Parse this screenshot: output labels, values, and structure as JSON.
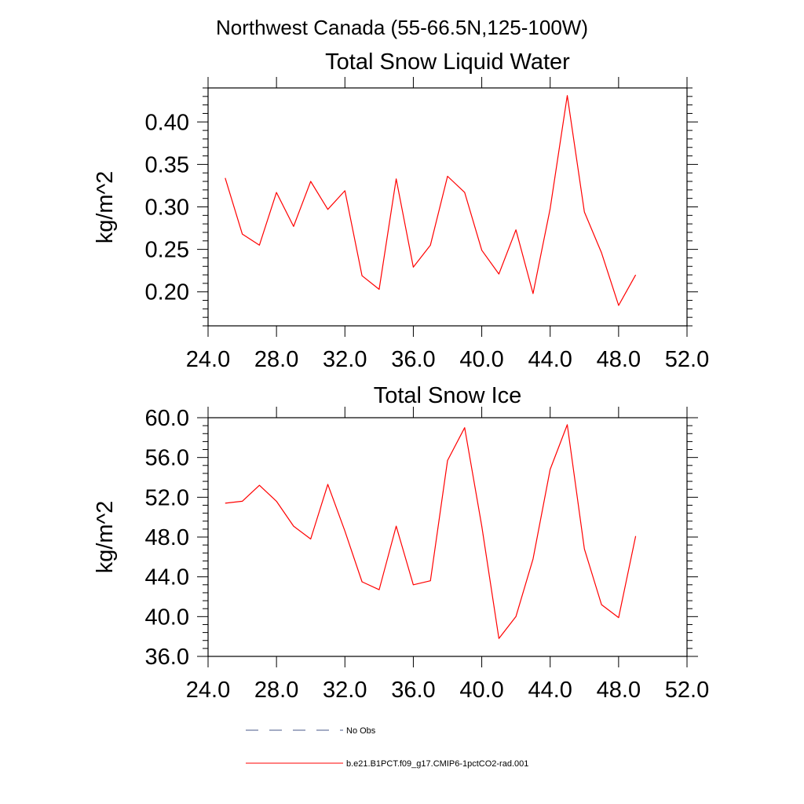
{
  "figure": {
    "main_title": "Northwest Canada (55-66.5N,125-100W)"
  },
  "chart_data": [
    {
      "type": "line",
      "title": "Total Snow Liquid Water",
      "xlabel": "",
      "ylabel": "kg/m^2",
      "xlim": [
        24.0,
        52.0
      ],
      "ylim": [
        0.16,
        0.44
      ],
      "xticks": [
        24.0,
        28.0,
        32.0,
        36.0,
        40.0,
        44.0,
        48.0,
        52.0
      ],
      "xtick_labels": [
        "24.0",
        "28.0",
        "32.0",
        "36.0",
        "40.0",
        "44.0",
        "48.0",
        "52.0"
      ],
      "yticks": [
        0.2,
        0.25,
        0.3,
        0.35,
        0.4
      ],
      "ytick_labels": [
        "0.20",
        "0.25",
        "0.30",
        "0.35",
        "0.40"
      ],
      "grid": false,
      "series": [
        {
          "name": "b.e21.B1PCT.f09_g17.CMIP6-1pctCO2-rad.001",
          "color": "#ff0000",
          "x": [
            25,
            26,
            27,
            28,
            29,
            30,
            31,
            32,
            33,
            34,
            35,
            36,
            37,
            38,
            39,
            40,
            41,
            42,
            43,
            44,
            45,
            46,
            47,
            48,
            49
          ],
          "y": [
            0.334,
            0.268,
            0.255,
            0.317,
            0.277,
            0.33,
            0.297,
            0.319,
            0.219,
            0.203,
            0.333,
            0.229,
            0.255,
            0.336,
            0.317,
            0.249,
            0.221,
            0.273,
            0.198,
            0.298,
            0.431,
            0.294,
            0.246,
            0.184,
            0.22
          ]
        }
      ]
    },
    {
      "type": "line",
      "title": "Total Snow Ice",
      "xlabel": "",
      "ylabel": "kg/m^2",
      "xlim": [
        24.0,
        52.0
      ],
      "ylim": [
        36.0,
        60.0
      ],
      "xticks": [
        24.0,
        28.0,
        32.0,
        36.0,
        40.0,
        44.0,
        48.0,
        52.0
      ],
      "xtick_labels": [
        "24.0",
        "28.0",
        "32.0",
        "36.0",
        "40.0",
        "44.0",
        "48.0",
        "52.0"
      ],
      "yticks": [
        36.0,
        40.0,
        44.0,
        48.0,
        52.0,
        56.0,
        60.0
      ],
      "ytick_labels": [
        "36.0",
        "40.0",
        "44.0",
        "48.0",
        "52.0",
        "56.0",
        "60.0"
      ],
      "grid": false,
      "series": [
        {
          "name": "b.e21.B1PCT.f09_g17.CMIP6-1pctCO2-rad.001",
          "color": "#ff0000",
          "x": [
            25,
            26,
            27,
            28,
            29,
            30,
            31,
            32,
            33,
            34,
            35,
            36,
            37,
            38,
            39,
            40,
            41,
            42,
            43,
            44,
            45,
            46,
            47,
            48,
            49
          ],
          "y": [
            51.4,
            51.6,
            53.2,
            51.6,
            49.1,
            47.8,
            53.3,
            48.6,
            43.5,
            42.7,
            49.1,
            43.2,
            43.6,
            55.7,
            59.0,
            49.1,
            37.8,
            40.0,
            45.8,
            54.8,
            59.3,
            46.8,
            41.2,
            39.9,
            48.1
          ]
        }
      ]
    }
  ],
  "legend": {
    "placement": "bottom",
    "entries": [
      {
        "label": "No Obs",
        "color": "#4a5a8a",
        "style": "dashed"
      },
      {
        "label": "b.e21.B1PCT.f09_g17.CMIP6-1pctCO2-rad.001",
        "color": "#ff0000",
        "style": "solid"
      }
    ]
  }
}
